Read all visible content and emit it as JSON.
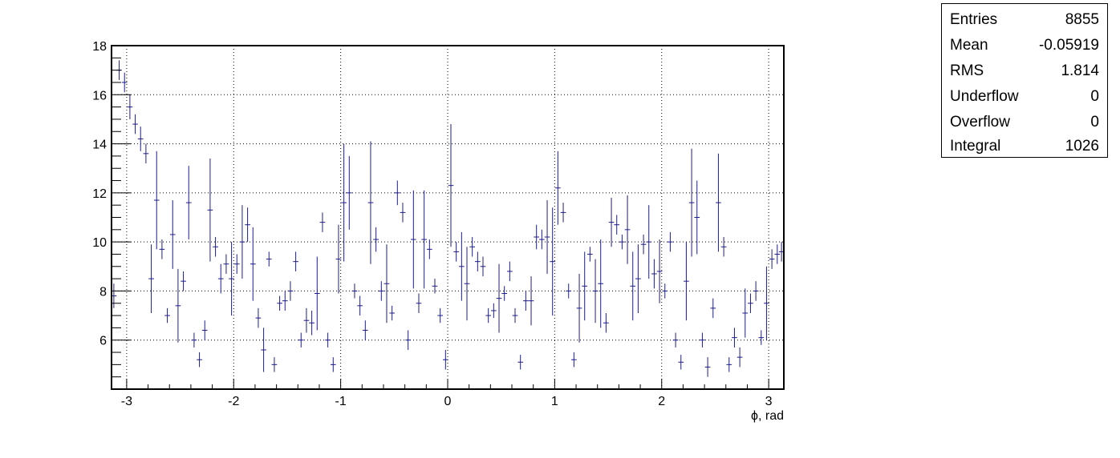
{
  "stats": {
    "rows": [
      {
        "label": "Entries",
        "value": "8855"
      },
      {
        "label": "Mean",
        "value": "-0.05919"
      },
      {
        "label": "RMS",
        "value": "1.814"
      },
      {
        "label": "Underflow",
        "value": "0"
      },
      {
        "label": "Overflow",
        "value": "0"
      },
      {
        "label": "Integral",
        "value": "1026"
      }
    ]
  },
  "chart_data": {
    "type": "scatter",
    "title": "",
    "xlabel": "ϕ, rad",
    "ylabel": "",
    "xlim": [
      -3.1416,
      3.1416
    ],
    "ylim": [
      4.0,
      18.0
    ],
    "x_ticks": [
      -3,
      -2,
      -1,
      0,
      1,
      2,
      3
    ],
    "y_ticks": [
      6,
      8,
      10,
      12,
      14,
      16,
      18
    ],
    "grid": true,
    "marker_color": "#1c1c8c",
    "series": [
      {
        "bin_width": 0.0503,
        "x": [
          -3.12,
          -3.07,
          -3.02,
          -2.97,
          -2.92,
          -2.87,
          -2.82,
          -2.77,
          -2.72,
          -2.67,
          -2.62,
          -2.57,
          -2.52,
          -2.47,
          -2.42,
          -2.37,
          -2.32,
          -2.27,
          -2.22,
          -2.17,
          -2.12,
          -2.07,
          -2.02,
          -1.97,
          -1.92,
          -1.87,
          -1.82,
          -1.77,
          -1.72,
          -1.67,
          -1.62,
          -1.57,
          -1.52,
          -1.47,
          -1.42,
          -1.37,
          -1.32,
          -1.27,
          -1.22,
          -1.17,
          -1.12,
          -1.07,
          -1.02,
          -0.97,
          -0.92,
          -0.87,
          -0.82,
          -0.77,
          -0.72,
          -0.67,
          -0.62,
          -0.57,
          -0.52,
          -0.47,
          -0.42,
          -0.37,
          -0.32,
          -0.27,
          -0.22,
          -0.17,
          -0.12,
          -0.07,
          -0.02,
          0.03,
          0.08,
          0.13,
          0.18,
          0.23,
          0.28,
          0.33,
          0.38,
          0.43,
          0.48,
          0.53,
          0.58,
          0.63,
          0.68,
          0.73,
          0.78,
          0.83,
          0.88,
          0.93,
          0.98,
          1.03,
          1.08,
          1.13,
          1.18,
          1.23,
          1.28,
          1.33,
          1.38,
          1.43,
          1.48,
          1.53,
          1.58,
          1.63,
          1.68,
          1.73,
          1.78,
          1.83,
          1.88,
          1.93,
          1.98,
          2.03,
          2.08,
          2.13,
          2.18,
          2.23,
          2.28,
          2.33,
          2.38,
          2.43,
          2.48,
          2.53,
          2.58,
          2.63,
          2.68,
          2.73,
          2.78,
          2.83,
          2.88,
          2.93,
          2.98,
          3.03,
          3.08,
          3.12
        ],
        "y": [
          7.8,
          17.0,
          16.5,
          15.5,
          14.8,
          14.2,
          13.6,
          8.5,
          11.7,
          9.7,
          7.0,
          10.3,
          7.4,
          8.4,
          11.6,
          6.0,
          5.2,
          6.4,
          11.3,
          9.8,
          8.5,
          9.1,
          8.5,
          9.1,
          10.0,
          10.7,
          9.1,
          6.9,
          5.6,
          9.3,
          5.0,
          7.5,
          7.6,
          8.0,
          9.2,
          6.0,
          6.8,
          6.7,
          7.9,
          10.8,
          6.0,
          5.0,
          9.3,
          11.6,
          12.0,
          8.0,
          7.4,
          6.4,
          11.6,
          10.1,
          8.0,
          8.3,
          7.1,
          12.0,
          11.2,
          6.0,
          10.1,
          7.5,
          10.1,
          9.7,
          8.2,
          7.0,
          5.2,
          12.3,
          9.6,
          9.0,
          8.3,
          9.8,
          9.2,
          9.0,
          7.0,
          7.2,
          7.7,
          7.9,
          8.8,
          7.0,
          5.1,
          7.6,
          7.6,
          10.2,
          10.1,
          10.2,
          9.2,
          12.2,
          11.2,
          8.0,
          5.2,
          7.3,
          8.2,
          9.5,
          8.0,
          8.3,
          6.7,
          10.8,
          10.7,
          10.0,
          10.5,
          8.2,
          8.5,
          9.9,
          10.0,
          8.7,
          8.8,
          8.0,
          10.0,
          6.0,
          5.1,
          8.4,
          11.6,
          11.0,
          6.0,
          4.9,
          7.3,
          11.6,
          9.8,
          5.0,
          6.1,
          5.3,
          7.1,
          7.5,
          8.0,
          6.1,
          7.5,
          9.3,
          9.5,
          9.6
        ],
        "err": [
          0.5,
          0.4,
          0.4,
          0.5,
          0.4,
          0.5,
          0.4,
          1.4,
          2.0,
          0.4,
          0.3,
          1.4,
          1.5,
          0.4,
          1.5,
          0.3,
          0.3,
          0.4,
          2.1,
          0.4,
          0.6,
          0.4,
          1.5,
          0.4,
          1.5,
          0.7,
          1.5,
          0.4,
          0.9,
          0.3,
          0.3,
          0.3,
          0.4,
          0.4,
          0.4,
          0.3,
          0.5,
          0.5,
          1.5,
          0.4,
          0.3,
          0.3,
          1.4,
          2.4,
          1.5,
          0.3,
          0.4,
          0.4,
          2.5,
          0.5,
          0.4,
          1.6,
          0.3,
          0.5,
          0.4,
          0.4,
          2.0,
          0.4,
          2.0,
          0.4,
          0.3,
          0.3,
          0.4,
          2.5,
          0.4,
          1.4,
          1.5,
          0.4,
          0.4,
          0.4,
          0.3,
          0.3,
          1.4,
          0.3,
          0.4,
          0.3,
          0.3,
          0.4,
          1.0,
          0.5,
          0.4,
          1.5,
          2.2,
          1.5,
          0.4,
          0.3,
          0.3,
          1.4,
          1.4,
          0.3,
          1.3,
          1.8,
          0.4,
          1.0,
          0.4,
          0.3,
          1.4,
          1.4,
          1.4,
          0.4,
          1.5,
          0.6,
          1.3,
          0.3,
          0.4,
          0.3,
          0.3,
          1.6,
          2.2,
          1.5,
          0.3,
          0.4,
          0.4,
          2.0,
          0.4,
          0.3,
          0.4,
          0.4,
          1.0,
          0.4,
          0.4,
          0.3,
          1.5,
          0.4,
          0.4,
          0.4
        ]
      }
    ]
  }
}
